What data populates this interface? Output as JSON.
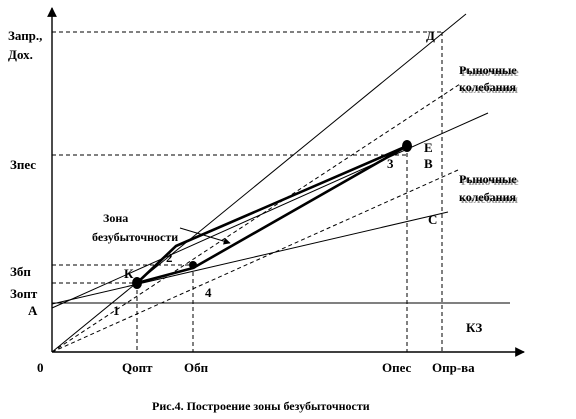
{
  "y_axis_labels": {
    "zapr": "Запр.,",
    "dokh": "Дох.",
    "zpes": "Зпес",
    "zbp": "Збп",
    "zopt": "Зопт"
  },
  "x_axis_labels": {
    "origin": "0",
    "qopt": "Qопт",
    "obp": "Обп",
    "opes": "Опес",
    "opr": "Опр-ва"
  },
  "point_labels": {
    "A": "А",
    "K": "К",
    "D": "Д",
    "E": "Е",
    "V": "В",
    "S": "С",
    "p1": "1",
    "p2": "2",
    "p3": "3",
    "p4": "4"
  },
  "kz_label": "КЗ",
  "zone_label": {
    "line1": "Зона",
    "line2": "безубыточности"
  },
  "market_upper": {
    "line1": "Рыночные",
    "line2": "колебания"
  },
  "market_lower": {
    "line1": "Рыночные",
    "line2": "колебания"
  },
  "caption": "Рис.4.  Построение зоны безубыточности"
}
